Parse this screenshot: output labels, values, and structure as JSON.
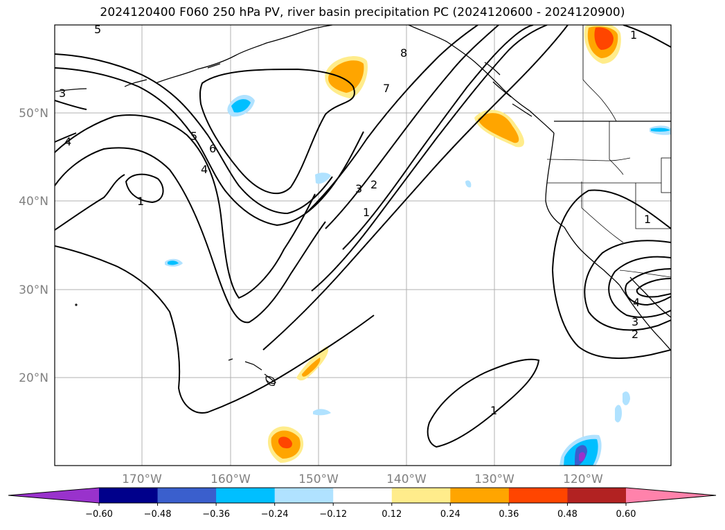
{
  "title": "2024120400 F060 250 hPa PV, river basin precipitation PC (2024120600 - 2024120900)",
  "lat_labels": [
    "50°N",
    "40°N",
    "30°N",
    "20°N"
  ],
  "lon_labels": [
    "170°W",
    "160°W",
    "150°W",
    "140°W",
    "130°W",
    "120°W"
  ],
  "pv_contour_labels": [
    "5",
    "3",
    "4",
    "1",
    "5",
    "6",
    "4",
    "7",
    "8",
    "3",
    "2",
    "1",
    "1",
    "1",
    "3",
    "2",
    "4",
    "1"
  ],
  "colorbar": {
    "ticks": [
      "−0.60",
      "−0.48",
      "−0.36",
      "−0.24",
      "−0.12",
      "0.12",
      "0.24",
      "0.36",
      "0.48",
      "0.60"
    ],
    "colors": [
      "#9932cc",
      "#00008b",
      "#3a5fcd",
      "#00bfff",
      "#b0e2ff",
      "#ffffff",
      "#ffec8b",
      "#ffa500",
      "#ff4500",
      "#b22222",
      "#ff82ab"
    ]
  },
  "colors": {
    "grid": "#b0b0b0",
    "tick_text": "#808080",
    "contour": "#000000"
  }
}
